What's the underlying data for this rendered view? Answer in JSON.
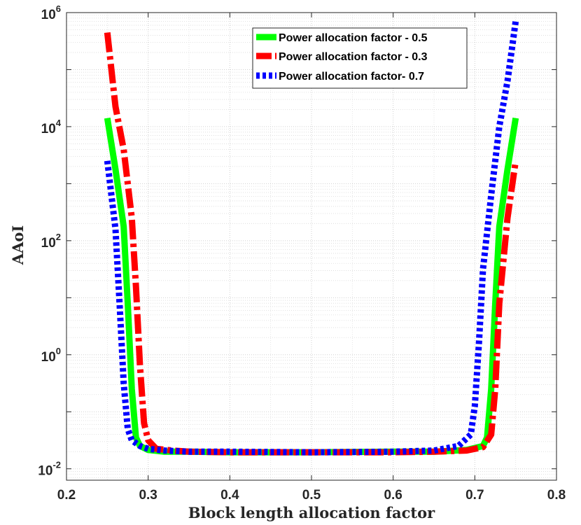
{
  "chart_data": {
    "type": "line",
    "title": "",
    "xlabel": "Block length allocation factor",
    "ylabel": "AAoI",
    "xlim": [
      0.2,
      0.8
    ],
    "ylim_log10": [
      -2.2,
      6
    ],
    "y_scale": "log",
    "x_ticks": [
      {
        "value": 0.2,
        "label": "0.2"
      },
      {
        "value": 0.3,
        "label": "0.3"
      },
      {
        "value": 0.4,
        "label": "0.4"
      },
      {
        "value": 0.5,
        "label": "0.5"
      },
      {
        "value": 0.6,
        "label": "0.6"
      },
      {
        "value": 0.7,
        "label": "0.7"
      },
      {
        "value": 0.8,
        "label": "0.8"
      }
    ],
    "y_ticks": [
      {
        "exp": -2,
        "base": "10",
        "sup": "-2"
      },
      {
        "exp": 0,
        "base": "10",
        "sup": "0"
      },
      {
        "exp": 2,
        "base": "10",
        "sup": "2"
      },
      {
        "exp": 4,
        "base": "10",
        "sup": "4"
      },
      {
        "exp": 6,
        "base": "10",
        "sup": "6"
      }
    ],
    "grid": true,
    "legend_position": "top-right",
    "series": [
      {
        "name": "Power allocation factor - 0.5",
        "color": "#00ff00",
        "style": "solid",
        "x": [
          0.25,
          0.26,
          0.27,
          0.275,
          0.28,
          0.285,
          0.29,
          0.3,
          0.32,
          0.35,
          0.4,
          0.5,
          0.6,
          0.65,
          0.69,
          0.71,
          0.715,
          0.72,
          0.725,
          0.73,
          0.74,
          0.75
        ],
        "log10_y": [
          4.15,
          3.25,
          2.25,
          0.9,
          -0.6,
          -1.45,
          -1.6,
          -1.67,
          -1.7,
          -1.7,
          -1.71,
          -1.71,
          -1.7,
          -1.7,
          -1.67,
          -1.6,
          -1.45,
          -0.6,
          0.9,
          2.25,
          3.25,
          4.15
        ]
      },
      {
        "name": "Power allocation factor - 0.3",
        "color": "#ff0000",
        "style": "dashdot",
        "x": [
          0.25,
          0.26,
          0.27,
          0.28,
          0.285,
          0.29,
          0.295,
          0.3,
          0.31,
          0.33,
          0.35,
          0.4,
          0.5,
          0.6,
          0.65,
          0.69,
          0.71,
          0.72,
          0.725,
          0.73,
          0.74,
          0.75
        ],
        "log10_y": [
          5.65,
          4.35,
          3.6,
          2.4,
          1.2,
          -0.2,
          -1.2,
          -1.5,
          -1.65,
          -1.68,
          -1.7,
          -1.71,
          -1.71,
          -1.71,
          -1.7,
          -1.68,
          -1.62,
          -1.4,
          -0.6,
          0.9,
          2.4,
          3.4
        ]
      },
      {
        "name": "Power allocation factor- 0.7",
        "color": "#0000ff",
        "style": "dotted",
        "x": [
          0.25,
          0.26,
          0.265,
          0.27,
          0.275,
          0.28,
          0.29,
          0.3,
          0.32,
          0.35,
          0.4,
          0.5,
          0.6,
          0.65,
          0.68,
          0.695,
          0.7,
          0.705,
          0.71,
          0.72,
          0.73,
          0.74,
          0.75
        ],
        "log10_y": [
          3.4,
          2.2,
          0.9,
          -0.5,
          -1.3,
          -1.5,
          -1.6,
          -1.65,
          -1.68,
          -1.7,
          -1.7,
          -1.71,
          -1.7,
          -1.68,
          -1.6,
          -1.4,
          -0.9,
          0.2,
          1.5,
          2.8,
          4.0,
          4.8,
          5.85
        ]
      }
    ]
  }
}
